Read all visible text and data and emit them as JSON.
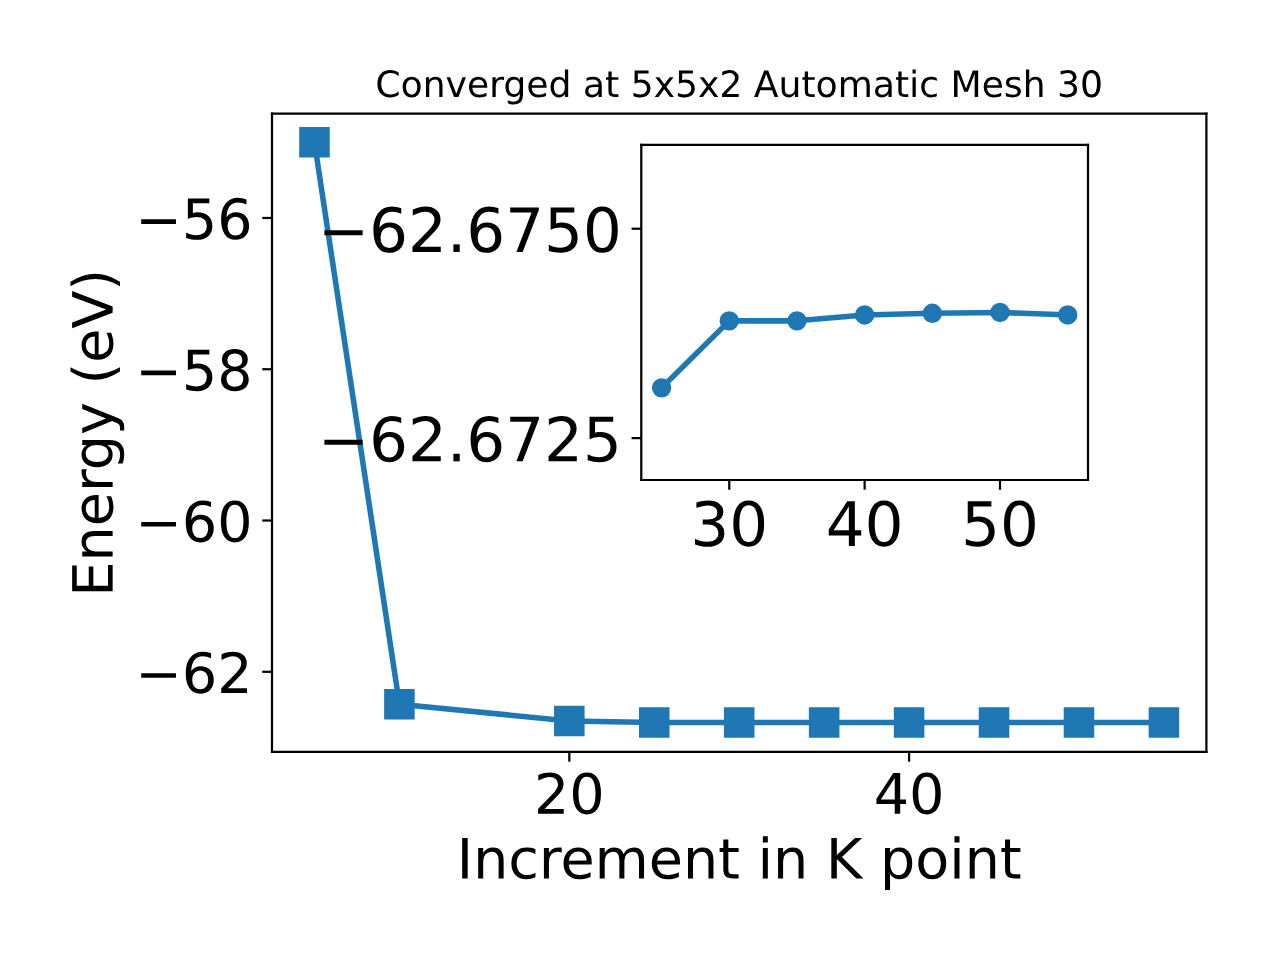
{
  "chart_data": [
    {
      "type": "line",
      "title": "Converged at 5x5x2 Automatic Mesh 30",
      "xlabel": "Increment in K point",
      "ylabel": "Energy (eV)",
      "x": [
        5,
        10,
        20,
        25,
        30,
        35,
        40,
        45,
        50,
        55
      ],
      "series": [
        {
          "color": "#1f77b4",
          "values": [
            -55.0,
            -62.43,
            -62.65,
            -62.67,
            -62.67,
            -62.67,
            -62.67,
            -62.67,
            -62.67,
            -62.67
          ]
        }
      ],
      "marker": "square",
      "line_style": "solid",
      "grid": false,
      "legend": false,
      "xlim": [
        2.5,
        57.5
      ],
      "ylim": [
        -63.06,
        -54.62
      ],
      "xticks": [
        20,
        40
      ],
      "yticks": [
        -62,
        -60,
        -58,
        -56
      ]
    },
    {
      "type": "line",
      "x": [
        25,
        30,
        35,
        40,
        45,
        50,
        55
      ],
      "series": [
        {
          "color": "#1f77b4",
          "values": [
            -62.6731,
            -62.6739,
            -62.6739,
            -62.67397,
            -62.67399,
            -62.674,
            -62.67397
          ]
        }
      ],
      "marker": "circle",
      "line_style": "solid",
      "grid": false,
      "legend": false,
      "xlim": [
        23.5,
        56.5
      ],
      "ylim": [
        -62.672,
        -62.676
      ],
      "xticks": [
        30,
        40,
        50
      ],
      "yticks": [
        {
          "value": -62.675,
          "label": "−62.6750"
        },
        {
          "value": -62.6725,
          "label": "−62.6725"
        }
      ]
    }
  ]
}
